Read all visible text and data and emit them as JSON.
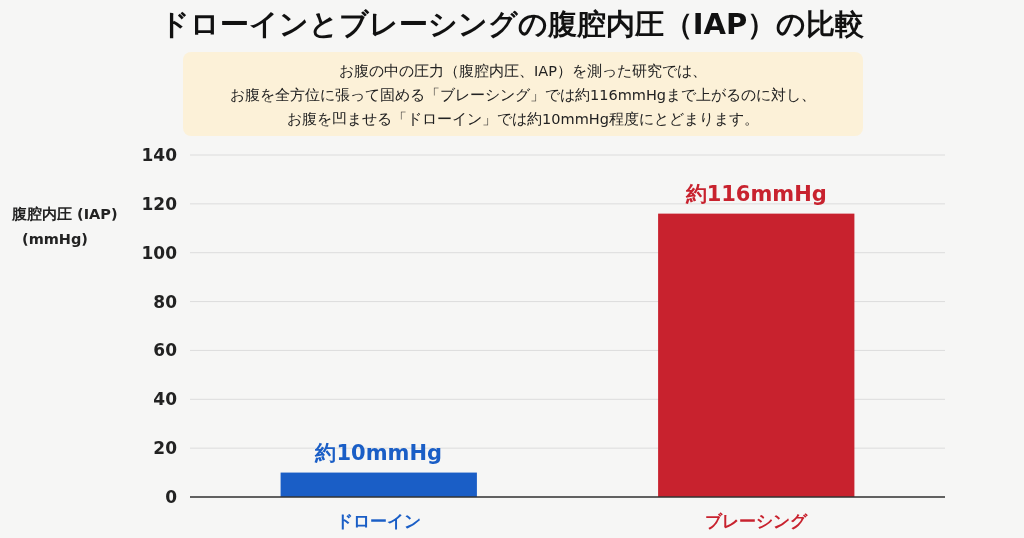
{
  "chart_data": {
    "type": "bar",
    "title": "ドローインとブレーシングの腹腔内圧（IAP）の比較",
    "annotations": [
      "お腹の中の圧力（腹腔内圧、IAP）を測った研究では、",
      "お腹を全方位に張って固める「ブレーシング」では約116mmHgまで上がるのに対し、",
      "お腹を凹ませる「ドローイン」では約10mmHg程度にとどまります。"
    ],
    "ylabel": "腹腔内圧 (IAP)\n(mmHg)",
    "categories": [
      "ドローイン",
      "ブレーシング"
    ],
    "values": [
      10,
      116
    ],
    "colors": [
      "#1a5ec6",
      "#c8222e"
    ],
    "value_labels": [
      "約10mmHg",
      "約116mmHg"
    ],
    "ylim": [
      0,
      140
    ],
    "yticks": [
      0,
      20,
      40,
      60,
      80,
      100,
      120,
      140
    ],
    "grid": "y"
  }
}
